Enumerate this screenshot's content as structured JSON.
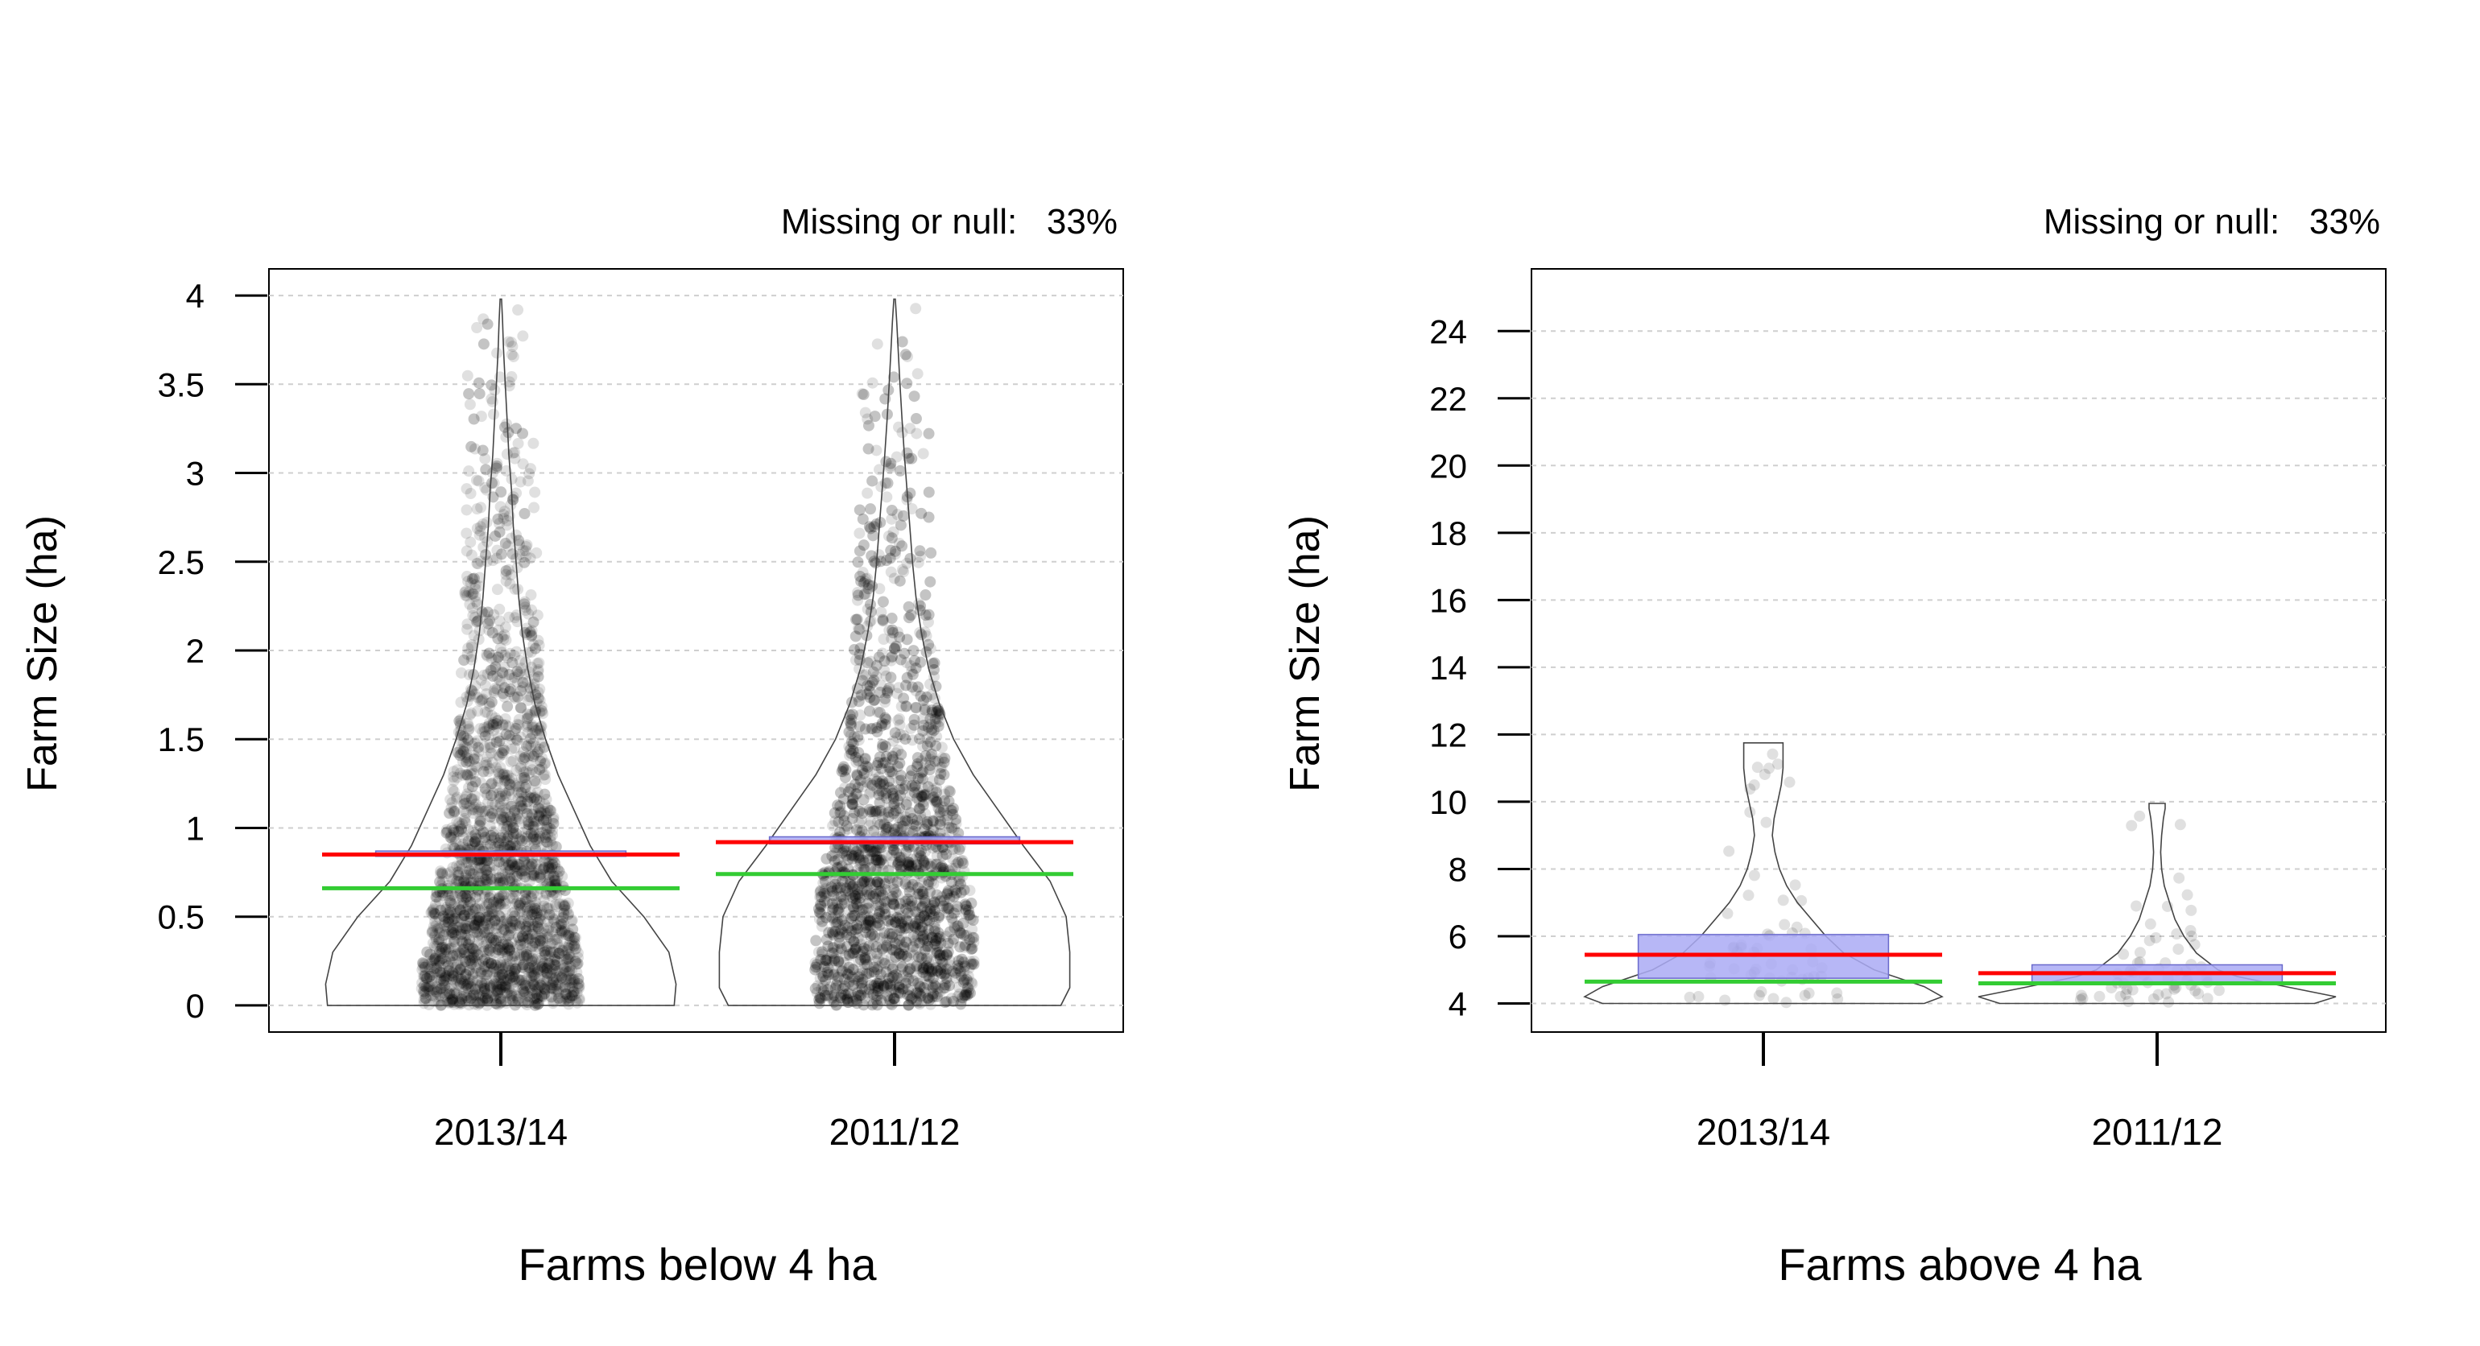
{
  "colors": {
    "points": "#000000",
    "box_fill": "#aaaaf5",
    "box_stroke": "#6a6acc",
    "mean_line": "#ff0000",
    "median_line": "#33cc33",
    "grid": "#cfcfcf",
    "violin": "#444444"
  },
  "chart_data": [
    {
      "type": "violin",
      "xlabel": "Farms below 4 ha",
      "ylabel": "Farm Size (ha)",
      "annotation": "Missing or null:   33%",
      "categories": [
        "2013/14",
        "2011/12"
      ],
      "ylim": [
        -0.15,
        4.15
      ],
      "yticks": [
        0,
        0.5,
        1,
        1.5,
        2,
        2.5,
        3,
        3.5,
        4
      ],
      "ytick_labels": [
        "0",
        "0.5",
        "1",
        "1.5",
        "2",
        "2.5",
        "3",
        "3.5",
        "4"
      ],
      "grid": "horizontal dashed",
      "groups": [
        {
          "category": "2013/14",
          "min": 0,
          "max": 3.98,
          "mean": 0.85,
          "median": 0.66,
          "box": [
            0.84,
            0.87
          ],
          "violin_profile": [
            [
              0,
              0.97
            ],
            [
              0.12,
              0.98
            ],
            [
              0.3,
              0.94
            ],
            [
              0.5,
              0.8
            ],
            [
              0.7,
              0.62
            ],
            [
              0.9,
              0.5
            ],
            [
              1.1,
              0.41
            ],
            [
              1.3,
              0.32
            ],
            [
              1.5,
              0.25
            ],
            [
              1.7,
              0.19
            ],
            [
              1.9,
              0.15
            ],
            [
              2.1,
              0.12
            ],
            [
              2.3,
              0.1
            ],
            [
              2.5,
              0.085
            ],
            [
              2.7,
              0.07
            ],
            [
              2.9,
              0.06
            ],
            [
              3.1,
              0.045
            ],
            [
              3.3,
              0.035
            ],
            [
              3.5,
              0.025
            ],
            [
              3.7,
              0.015
            ],
            [
              3.85,
              0.01
            ],
            [
              3.98,
              0.004
            ]
          ]
        },
        {
          "category": "2011/12",
          "min": 0,
          "max": 3.98,
          "mean": 0.92,
          "median": 0.74,
          "box": [
            0.91,
            0.95
          ],
          "violin_profile": [
            [
              0,
              0.93
            ],
            [
              0.1,
              0.98
            ],
            [
              0.3,
              0.98
            ],
            [
              0.5,
              0.96
            ],
            [
              0.7,
              0.87
            ],
            [
              0.9,
              0.72
            ],
            [
              1.1,
              0.58
            ],
            [
              1.3,
              0.44
            ],
            [
              1.5,
              0.33
            ],
            [
              1.7,
              0.25
            ],
            [
              1.9,
              0.19
            ],
            [
              2.1,
              0.15
            ],
            [
              2.3,
              0.12
            ],
            [
              2.5,
              0.1
            ],
            [
              2.7,
              0.085
            ],
            [
              2.9,
              0.07
            ],
            [
              3.1,
              0.055
            ],
            [
              3.3,
              0.042
            ],
            [
              3.5,
              0.03
            ],
            [
              3.7,
              0.02
            ],
            [
              3.85,
              0.012
            ],
            [
              3.98,
              0.004
            ]
          ]
        }
      ]
    },
    {
      "type": "violin",
      "xlabel": "Farms above 4 ha",
      "ylabel": "Farm Size (ha)",
      "annotation": "Missing or null:   33%",
      "categories": [
        "2013/14",
        "2011/12"
      ],
      "ylim": [
        3.15,
        25.85
      ],
      "yticks": [
        4,
        6,
        8,
        10,
        12,
        14,
        16,
        18,
        20,
        22,
        24
      ],
      "ytick_labels": [
        "4",
        "6",
        "8",
        "10",
        "12",
        "14",
        "16",
        "18",
        "20",
        "22",
        "24"
      ],
      "grid": "horizontal dashed",
      "groups": [
        {
          "category": "2013/14",
          "min": 4.0,
          "max": 11.75,
          "mean": 5.45,
          "median": 4.65,
          "box": [
            4.75,
            6.05
          ],
          "violin_profile": [
            [
              4.0,
              0.9
            ],
            [
              4.2,
              1.0
            ],
            [
              4.5,
              0.9
            ],
            [
              5.0,
              0.62
            ],
            [
              5.5,
              0.45
            ],
            [
              6.0,
              0.35
            ],
            [
              6.5,
              0.27
            ],
            [
              7.0,
              0.19
            ],
            [
              7.5,
              0.13
            ],
            [
              8.0,
              0.09
            ],
            [
              8.5,
              0.065
            ],
            [
              9.0,
              0.05
            ],
            [
              9.5,
              0.06
            ],
            [
              10.0,
              0.08
            ],
            [
              10.5,
              0.1
            ],
            [
              11.0,
              0.11
            ],
            [
              11.5,
              0.11
            ],
            [
              11.75,
              0.11
            ]
          ]
        },
        {
          "category": "2011/12",
          "min": 4.0,
          "max": 9.95,
          "mean": 4.9,
          "median": 4.6,
          "box": [
            4.6,
            5.15
          ],
          "violin_profile": [
            [
              4.0,
              0.88
            ],
            [
              4.2,
              1.0
            ],
            [
              4.5,
              0.72
            ],
            [
              4.8,
              0.45
            ],
            [
              5.0,
              0.34
            ],
            [
              5.5,
              0.22
            ],
            [
              6.0,
              0.15
            ],
            [
              6.5,
              0.1
            ],
            [
              7.0,
              0.07
            ],
            [
              7.5,
              0.04
            ],
            [
              8.0,
              0.025
            ],
            [
              8.5,
              0.02
            ],
            [
              9.0,
              0.025
            ],
            [
              9.5,
              0.035
            ],
            [
              9.8,
              0.045
            ],
            [
              9.95,
              0.045
            ]
          ]
        }
      ]
    }
  ]
}
